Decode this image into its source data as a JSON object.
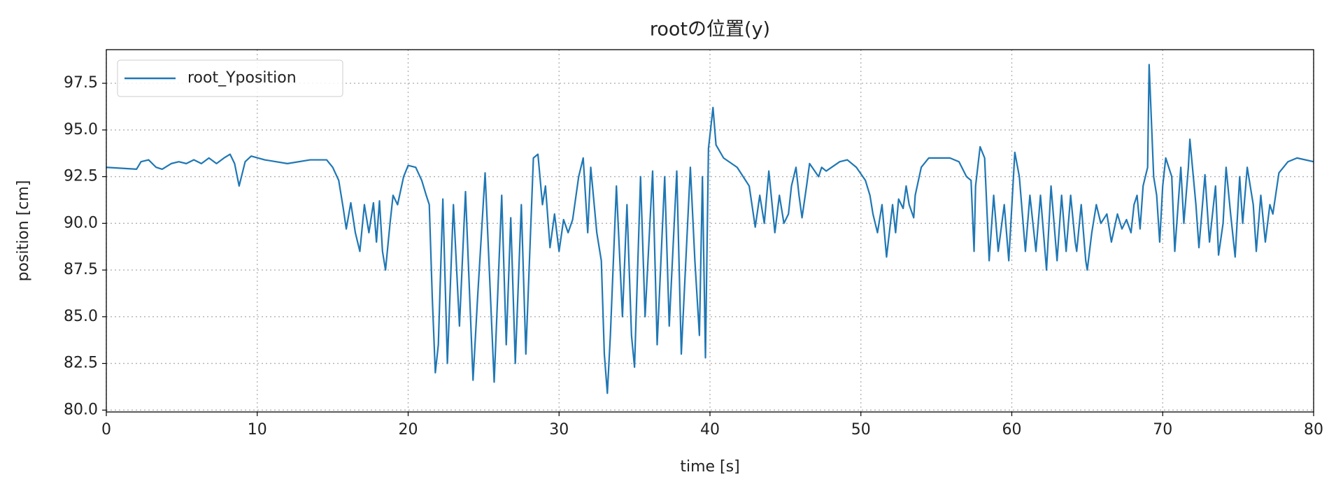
{
  "chart_data": {
    "type": "line",
    "title": "rootの位置(y)",
    "x_label": "time [s]",
    "y_label": "position [cm]",
    "xlim": [
      0,
      80
    ],
    "ylim": [
      79.9,
      99.3
    ],
    "xticks": [
      0,
      10,
      20,
      30,
      40,
      50,
      60,
      70,
      80
    ],
    "yticks": [
      {
        "value": 80,
        "label": "80.0"
      },
      82.5,
      {
        "value": 85,
        "label": "85.0"
      },
      87.5,
      {
        "value": 90,
        "label": "90.0"
      },
      92.5,
      {
        "value": 95,
        "label": "95.0"
      },
      97.5
    ],
    "grid": true,
    "legend": "upper left",
    "series": [
      {
        "name": "root_Yposition",
        "color": "#1f77b4",
        "x": [
          0,
          2,
          2.3,
          2.8,
          3.3,
          3.7,
          4.3,
          4.8,
          5.3,
          5.8,
          6.3,
          6.8,
          7.3,
          7.8,
          8.2,
          8.5,
          8.8,
          9.2,
          9.6,
          10.5,
          12,
          13.5,
          14.6,
          15.0,
          15.4,
          15.7,
          15.9,
          16.2,
          16.5,
          16.8,
          17.1,
          17.4,
          17.7,
          17.9,
          18.1,
          18.3,
          18.5,
          18.8,
          19.0,
          19.3,
          19.7,
          20.0,
          20.5,
          20.9,
          21.2,
          21.4,
          21.6,
          21.8,
          22.0,
          22.3,
          22.6,
          23.0,
          23.4,
          23.8,
          24.3,
          24.6,
          25.1,
          25.7,
          26.2,
          26.5,
          26.8,
          27.1,
          27.5,
          27.8,
          28.3,
          28.6,
          28.9,
          29.1,
          29.4,
          29.7,
          30.0,
          30.3,
          30.6,
          30.9,
          31.3,
          31.6,
          31.9,
          32.1,
          32.5,
          32.8,
          33.0,
          33.2,
          33.4,
          33.8,
          34.2,
          34.5,
          34.8,
          35.0,
          35.4,
          35.7,
          36.2,
          36.5,
          37.0,
          37.3,
          37.8,
          38.1,
          38.7,
          39.0,
          39.3,
          39.5,
          39.7,
          39.9,
          40.2,
          40.4,
          40.9,
          41.8,
          42.6,
          43.0,
          43.3,
          43.6,
          43.9,
          44.3,
          44.6,
          44.9,
          45.2,
          45.4,
          45.7,
          45.9,
          46.1,
          46.4,
          46.6,
          47.2,
          47.4,
          47.7,
          48.6,
          49.1,
          49.7,
          50.3,
          50.6,
          50.8,
          51.1,
          51.4,
          51.7,
          52.1,
          52.3,
          52.5,
          52.8,
          53.0,
          53.2,
          53.5,
          53.6,
          54.0,
          54.5,
          55.9,
          56.5,
          57.0,
          57.3,
          57.5,
          57.6,
          57.9,
          58.2,
          58.5,
          58.8,
          59.1,
          59.5,
          59.8,
          60.2,
          60.5,
          60.9,
          61.2,
          61.6,
          61.9,
          62.3,
          62.6,
          63.0,
          63.3,
          63.6,
          63.9,
          64.2,
          64.3,
          64.6,
          64.9,
          65.0,
          65.3,
          65.6,
          65.9,
          66.3,
          66.6,
          67.0,
          67.3,
          67.6,
          67.9,
          68.1,
          68.3,
          68.5,
          68.7,
          69.0,
          69.1,
          69.4,
          69.6,
          69.8,
          70.0,
          70.2,
          70.6,
          70.8,
          71.2,
          71.4,
          71.7,
          71.8,
          72.2,
          72.4,
          72.8,
          73.1,
          73.5,
          73.7,
          74.0,
          74.2,
          74.5,
          74.8,
          75.1,
          75.3,
          75.6,
          76.0,
          76.2,
          76.5,
          76.8,
          77.1,
          77.3,
          77.7,
          78.3,
          78.9,
          80.0
        ],
        "values": [
          93.0,
          92.9,
          93.3,
          93.4,
          93.0,
          92.9,
          93.2,
          93.3,
          93.2,
          93.4,
          93.2,
          93.5,
          93.2,
          93.5,
          93.7,
          93.2,
          92.0,
          93.3,
          93.6,
          93.4,
          93.2,
          93.4,
          93.4,
          93.0,
          92.3,
          90.8,
          89.7,
          91.1,
          89.5,
          88.5,
          91.0,
          89.5,
          91.1,
          89.0,
          91.2,
          88.5,
          87.5,
          90.0,
          91.5,
          91.0,
          92.5,
          93.1,
          93.0,
          92.3,
          91.5,
          91.0,
          86.0,
          82.0,
          83.5,
          91.3,
          82.5,
          91.0,
          84.5,
          91.7,
          81.6,
          86.0,
          92.7,
          81.5,
          91.5,
          83.5,
          90.3,
          82.5,
          91.0,
          83.0,
          93.5,
          93.7,
          91.0,
          92.0,
          88.7,
          90.5,
          88.5,
          90.2,
          89.5,
          90.2,
          92.5,
          93.5,
          89.5,
          93.0,
          89.5,
          88.0,
          83.0,
          80.9,
          84.0,
          92.0,
          85.0,
          91.0,
          84.0,
          82.3,
          92.5,
          85.0,
          92.8,
          83.5,
          92.5,
          84.5,
          92.8,
          83.0,
          93.0,
          88.0,
          84.0,
          92.5,
          82.8,
          94.0,
          96.2,
          94.2,
          93.5,
          93.0,
          92.0,
          89.8,
          91.5,
          90.0,
          92.8,
          89.5,
          91.5,
          90.0,
          90.5,
          92.0,
          93.0,
          91.5,
          90.3,
          92.0,
          93.2,
          92.5,
          93.0,
          92.8,
          93.3,
          93.4,
          93.0,
          92.3,
          91.5,
          90.5,
          89.5,
          91.0,
          88.2,
          91.0,
          89.5,
          91.3,
          90.8,
          92.0,
          91.0,
          90.3,
          91.5,
          93.0,
          93.5,
          93.5,
          93.3,
          92.5,
          92.3,
          88.5,
          92.0,
          94.1,
          93.5,
          88.0,
          91.5,
          88.5,
          91.0,
          88.0,
          93.8,
          92.5,
          88.5,
          91.5,
          88.5,
          91.5,
          87.5,
          92.0,
          88.0,
          91.5,
          88.5,
          91.5,
          89.0,
          88.5,
          91.0,
          88.0,
          87.5,
          89.5,
          91.0,
          90.0,
          90.5,
          89.0,
          90.5,
          89.7,
          90.2,
          89.5,
          91.0,
          91.5,
          89.7,
          92.0,
          93.0,
          98.5,
          92.5,
          91.5,
          89.0,
          92.0,
          93.5,
          92.5,
          88.5,
          93.0,
          90.0,
          93.0,
          94.5,
          91.0,
          88.7,
          92.6,
          89.0,
          92.0,
          88.3,
          90.0,
          93.0,
          90.5,
          88.2,
          92.5,
          90.0,
          93.0,
          91.0,
          88.5,
          91.5,
          89.0,
          91.0,
          90.5,
          92.7,
          93.3,
          93.5,
          93.3
        ]
      }
    ]
  }
}
